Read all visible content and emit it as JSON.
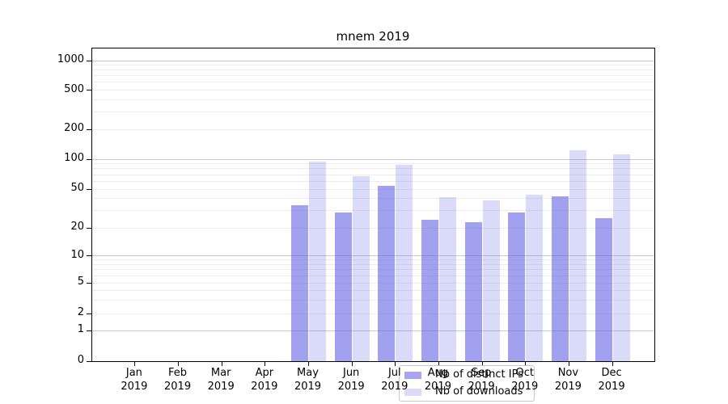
{
  "title": "mnem 2019",
  "axes": {
    "y_tick_labels": [
      "0",
      "1",
      "2",
      "5",
      "10",
      "20",
      "50",
      "100",
      "200",
      "500",
      "1000"
    ],
    "x_months": [
      "Jan",
      "Feb",
      "Mar",
      "Apr",
      "May",
      "Jun",
      "Jul",
      "Aug",
      "Sep",
      "Oct",
      "Nov",
      "Dec"
    ],
    "x_year": "2019"
  },
  "legend": {
    "items": [
      {
        "label": "Nb of distinct IPs",
        "swatch_color": "#a5a5f1"
      },
      {
        "label": "Nb of downloads",
        "swatch_color": "#dbdbf8"
      }
    ]
  },
  "colors": {
    "bar_distinct_ips_fill": "rgba(99,99,228,0.60)",
    "bar_downloads_fill": "rgba(99,99,228,0.24)",
    "major_grid": "#c9c9c9",
    "minor_grid": "#ededed"
  },
  "chart_data": {
    "type": "bar",
    "title": "mnem 2019",
    "categories": [
      "Jan 2019",
      "Feb 2019",
      "Mar 2019",
      "Apr 2019",
      "May 2019",
      "Jun 2019",
      "Jul 2019",
      "Aug 2019",
      "Sep 2019",
      "Oct 2019",
      "Nov 2019",
      "Dec 2019"
    ],
    "series": [
      {
        "name": "Nb of distinct IPs",
        "color": "#a5a5f1",
        "values": [
          0,
          0,
          0,
          0,
          34,
          29,
          54,
          24,
          23,
          29,
          42,
          25
        ]
      },
      {
        "name": "Nb of downloads",
        "color": "#dbdbf8",
        "values": [
          0,
          0,
          0,
          0,
          95,
          68,
          88,
          41,
          38,
          44,
          124,
          112
        ]
      }
    ],
    "xlabel": "",
    "ylabel": "",
    "yscale": "symlog",
    "yticks": [
      0,
      1,
      2,
      5,
      10,
      20,
      50,
      100,
      200,
      500,
      1000
    ],
    "ylim": [
      0,
      1300
    ],
    "grid": true,
    "legend_position": "lower center"
  }
}
